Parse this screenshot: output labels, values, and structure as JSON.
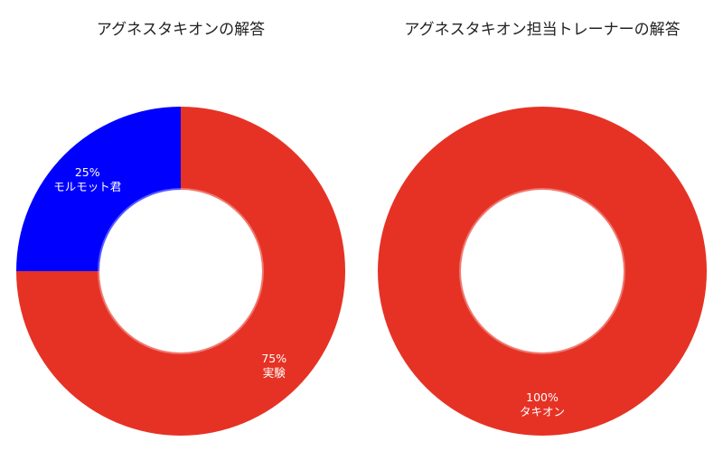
{
  "chart_data": [
    {
      "type": "pie",
      "title": "アグネスタキオンの解答",
      "slices": [
        {
          "label": "実験",
          "value": 75,
          "percent_label": "75%",
          "color": "#e63224"
        },
        {
          "label": "モルモット君",
          "value": 25,
          "percent_label": "25%",
          "color": "#0000ff"
        }
      ]
    },
    {
      "type": "pie",
      "title": "アグネスタキオン担当トレーナーの解答",
      "slices": [
        {
          "label": "タキオン",
          "value": 100,
          "percent_label": "100%",
          "color": "#e63224"
        }
      ]
    }
  ]
}
